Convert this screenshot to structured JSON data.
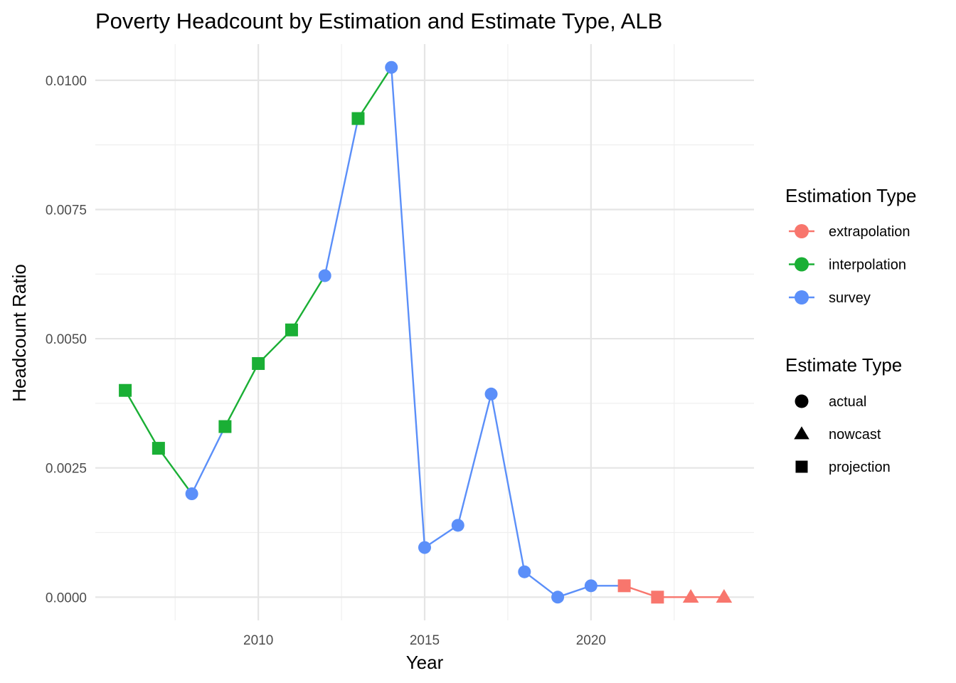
{
  "chart_data": {
    "type": "line",
    "title": "Poverty Headcount by Estimation and Estimate Type, ALB",
    "xlabel": "Year",
    "ylabel": "Headcount Ratio",
    "xlim": [
      2005.1,
      2024.9
    ],
    "ylim": [
      -0.00045,
      0.0107
    ],
    "x_ticks": [
      2010,
      2015,
      2020
    ],
    "x_tick_labels": [
      "2010",
      "2015",
      "2020"
    ],
    "y_ticks": [
      0,
      0.0025,
      0.005,
      0.0075,
      0.01
    ],
    "y_tick_labels": [
      "0.0000",
      "0.0025",
      "0.0050",
      "0.0075",
      "0.0100"
    ],
    "grid": true,
    "legend_position": "right",
    "colors": {
      "extrapolation": "#f8766d",
      "interpolation": "#1aaf35",
      "survey": "#5b8ff9"
    },
    "series": [
      {
        "name": "interpolation",
        "points": [
          {
            "x": 2006,
            "y": 0.004,
            "shape": "projection"
          },
          {
            "x": 2007,
            "y": 0.00288,
            "shape": "projection"
          },
          {
            "x": 2008,
            "y": 0.002,
            "shape": "actual"
          }
        ]
      },
      {
        "name": "survey",
        "points": [
          {
            "x": 2008,
            "y": 0.002,
            "shape": "actual"
          },
          {
            "x": 2009,
            "y": 0.0033,
            "shape": "projection"
          }
        ]
      },
      {
        "name": "interpolation",
        "points": [
          {
            "x": 2009,
            "y": 0.0033,
            "shape": "projection"
          },
          {
            "x": 2010,
            "y": 0.00452,
            "shape": "projection"
          },
          {
            "x": 2011,
            "y": 0.00517,
            "shape": "projection"
          },
          {
            "x": 2012,
            "y": 0.00622,
            "shape": "actual"
          }
        ]
      },
      {
        "name": "survey",
        "points": [
          {
            "x": 2012,
            "y": 0.00622,
            "shape": "actual"
          },
          {
            "x": 2013,
            "y": 0.00926,
            "shape": "projection"
          }
        ]
      },
      {
        "name": "interpolation",
        "points": [
          {
            "x": 2013,
            "y": 0.00926,
            "shape": "projection"
          },
          {
            "x": 2014,
            "y": 0.01025,
            "shape": "actual"
          }
        ]
      },
      {
        "name": "survey",
        "points": [
          {
            "x": 2014,
            "y": 0.01025,
            "shape": "actual"
          },
          {
            "x": 2015,
            "y": 0.00096,
            "shape": "actual"
          },
          {
            "x": 2016,
            "y": 0.00139,
            "shape": "actual"
          },
          {
            "x": 2017,
            "y": 0.00393,
            "shape": "actual"
          },
          {
            "x": 2018,
            "y": 0.00049,
            "shape": "actual"
          },
          {
            "x": 2019,
            "y": 0.0,
            "shape": "actual"
          },
          {
            "x": 2020,
            "y": 0.00022,
            "shape": "actual"
          },
          {
            "x": 2021,
            "y": 0.00022,
            "shape": "projection"
          }
        ]
      },
      {
        "name": "extrapolation",
        "points": [
          {
            "x": 2021,
            "y": 0.00022,
            "shape": "projection"
          },
          {
            "x": 2022,
            "y": 0.0,
            "shape": "projection"
          },
          {
            "x": 2023,
            "y": 0.0,
            "shape": "nowcast"
          },
          {
            "x": 2024,
            "y": 0.0,
            "shape": "nowcast"
          }
        ]
      }
    ],
    "marker_colors": [
      {
        "x": 2006,
        "color_key": "interpolation"
      },
      {
        "x": 2007,
        "color_key": "interpolation"
      },
      {
        "x": 2008,
        "color_key": "survey"
      },
      {
        "x": 2009,
        "color_key": "interpolation"
      },
      {
        "x": 2010,
        "color_key": "interpolation"
      },
      {
        "x": 2011,
        "color_key": "interpolation"
      },
      {
        "x": 2012,
        "color_key": "survey"
      },
      {
        "x": 2013,
        "color_key": "interpolation"
      },
      {
        "x": 2014,
        "color_key": "survey"
      },
      {
        "x": 2015,
        "color_key": "survey"
      },
      {
        "x": 2016,
        "color_key": "survey"
      },
      {
        "x": 2017,
        "color_key": "survey"
      },
      {
        "x": 2018,
        "color_key": "survey"
      },
      {
        "x": 2019,
        "color_key": "survey"
      },
      {
        "x": 2020,
        "color_key": "survey"
      },
      {
        "x": 2021,
        "color_key": "extrapolation"
      },
      {
        "x": 2022,
        "color_key": "extrapolation"
      },
      {
        "x": 2023,
        "color_key": "extrapolation"
      },
      {
        "x": 2024,
        "color_key": "extrapolation"
      }
    ],
    "legend": {
      "color_title": "Estimation Type",
      "color_items": [
        {
          "label": "extrapolation",
          "color": "#f8766d"
        },
        {
          "label": "interpolation",
          "color": "#1aaf35"
        },
        {
          "label": "survey",
          "color": "#5b8ff9"
        }
      ],
      "shape_title": "Estimate Type",
      "shape_items": [
        {
          "label": "actual",
          "shape": "circle"
        },
        {
          "label": "nowcast",
          "shape": "triangle"
        },
        {
          "label": "projection",
          "shape": "square"
        }
      ]
    }
  }
}
